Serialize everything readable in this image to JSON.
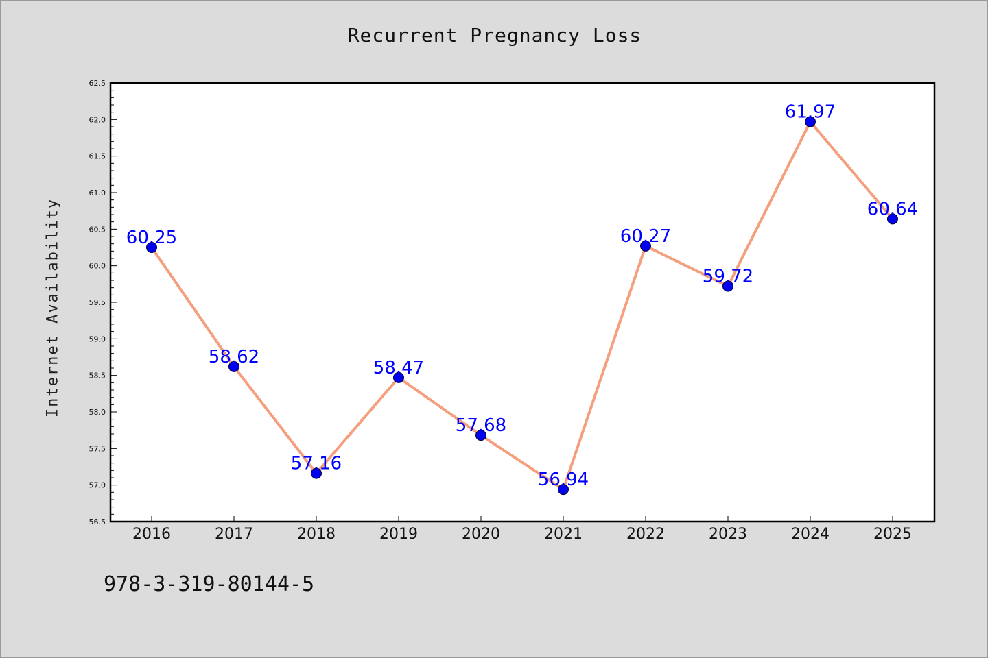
{
  "chart_data": {
    "type": "line",
    "title": "Recurrent Pregnancy Loss",
    "xlabel": "",
    "ylabel": "Internet Availability",
    "categories": [
      "2016",
      "2017",
      "2018",
      "2019",
      "2020",
      "2021",
      "2022",
      "2023",
      "2024",
      "2025"
    ],
    "series": [
      {
        "values": [
          60.25,
          58.62,
          57.16,
          58.47,
          57.68,
          56.94,
          60.27,
          59.72,
          61.97,
          60.64
        ]
      }
    ],
    "data_labels": [
      "60.25",
      "58.62",
      "57.16",
      "58.47",
      "57.68",
      "56.94",
      "60.27",
      "59.72",
      "61.97",
      "60.64"
    ],
    "ylim": [
      56.5,
      62.5
    ],
    "yticks": [
      "56.5",
      "57.0",
      "57.5",
      "58.0",
      "58.5",
      "59.0",
      "59.5",
      "60.0",
      "60.5",
      "61.0",
      "61.5",
      "62.0",
      "62.5"
    ],
    "grid": false,
    "line_color": "#f4a07e",
    "marker_color": "#0000ee",
    "label_color": "#0000ff",
    "background_color": "#dcdcdc",
    "plot_background": "#ffffff"
  },
  "footer": {
    "text": "978-3-319-80144-5"
  }
}
